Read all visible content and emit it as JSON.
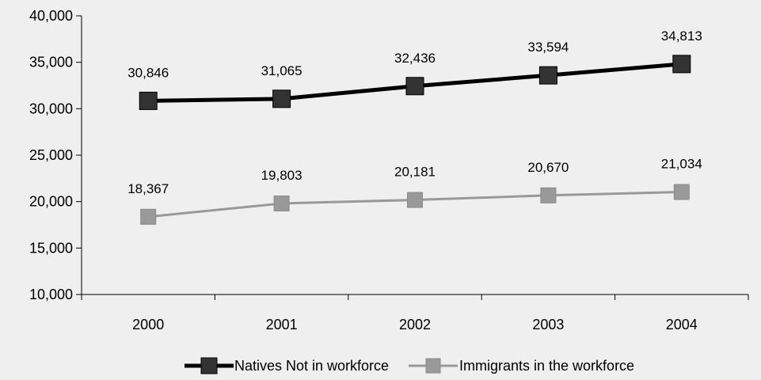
{
  "chart_data": {
    "type": "line",
    "title": "",
    "xlabel": "",
    "ylabel": "",
    "categories": [
      "2000",
      "2001",
      "2002",
      "2003",
      "2004"
    ],
    "ylim": [
      10000,
      40000
    ],
    "yticks": [
      "10,000",
      "15,000",
      "20,000",
      "25,000",
      "30,000",
      "35,000",
      "40,000"
    ],
    "ytick_values": [
      10000,
      15000,
      20000,
      25000,
      30000,
      35000,
      40000
    ],
    "grid": false,
    "legend_position": "bottom",
    "series": [
      {
        "name": "Natives Not in workforce",
        "values": [
          30846,
          31065,
          32436,
          33594,
          34813
        ],
        "labels": [
          "30,846",
          "31,065",
          "32,436",
          "33,594",
          "34,813"
        ],
        "color": "#000000",
        "marker_color": "#333333"
      },
      {
        "name": "Immigrants in the workforce",
        "values": [
          18367,
          19803,
          20181,
          20670,
          21034
        ],
        "labels": [
          "18,367",
          "19,803",
          "20,181",
          "20,670",
          "21,034"
        ],
        "color": "#999999",
        "marker_color": "#999999"
      }
    ]
  },
  "colors": {
    "background": "#efefef",
    "axis": "#000000"
  }
}
